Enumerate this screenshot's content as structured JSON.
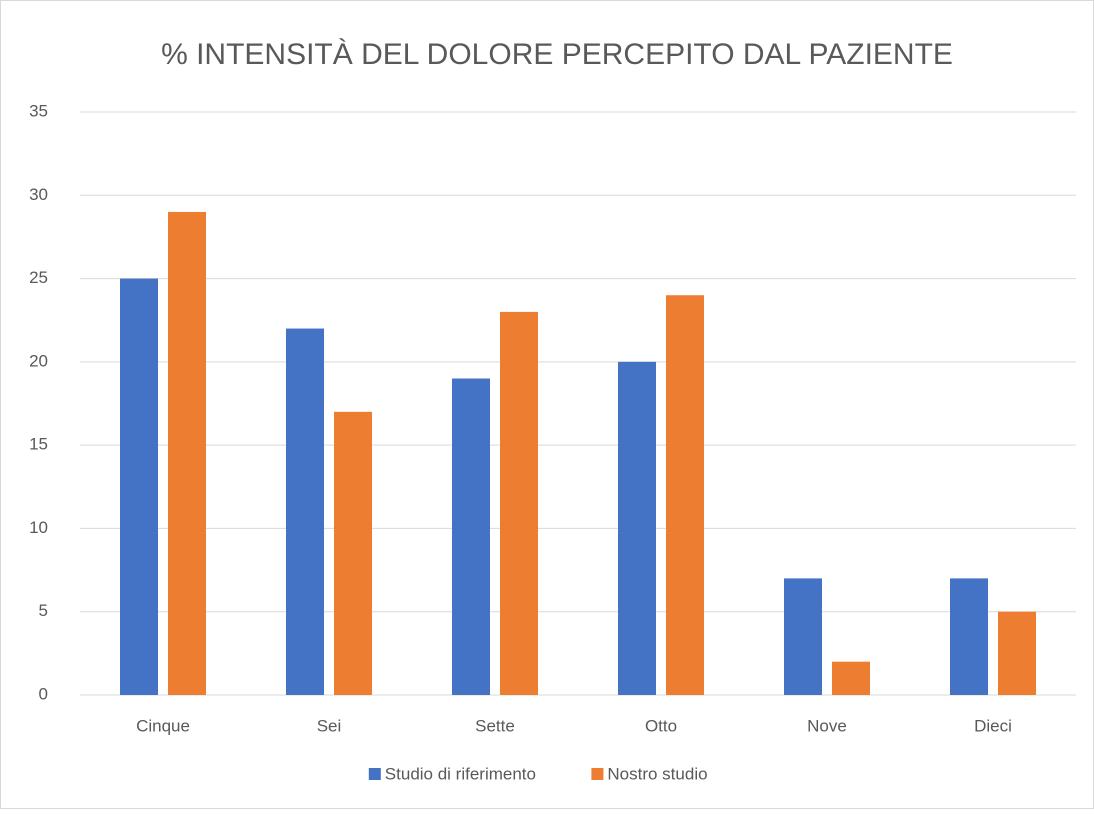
{
  "chart_data": {
    "type": "bar",
    "title": "% INTENSITÀ DEL DOLORE PERCEPITO DAL PAZIENTE",
    "categories": [
      "Cinque",
      "Sei",
      "Sette",
      "Otto",
      "Nove",
      "Dieci"
    ],
    "series": [
      {
        "name": "Studio di riferimento",
        "color": "#4472c4",
        "values": [
          25,
          22,
          19,
          20,
          7,
          7
        ]
      },
      {
        "name": "Nostro studio",
        "color": "#ed7d31",
        "values": [
          29,
          17,
          23,
          24,
          2,
          5
        ]
      }
    ],
    "ylim": [
      0,
      35
    ],
    "yticks": [
      0,
      5,
      10,
      15,
      20,
      25,
      30,
      35
    ],
    "grid": true,
    "legend": "bottom"
  }
}
